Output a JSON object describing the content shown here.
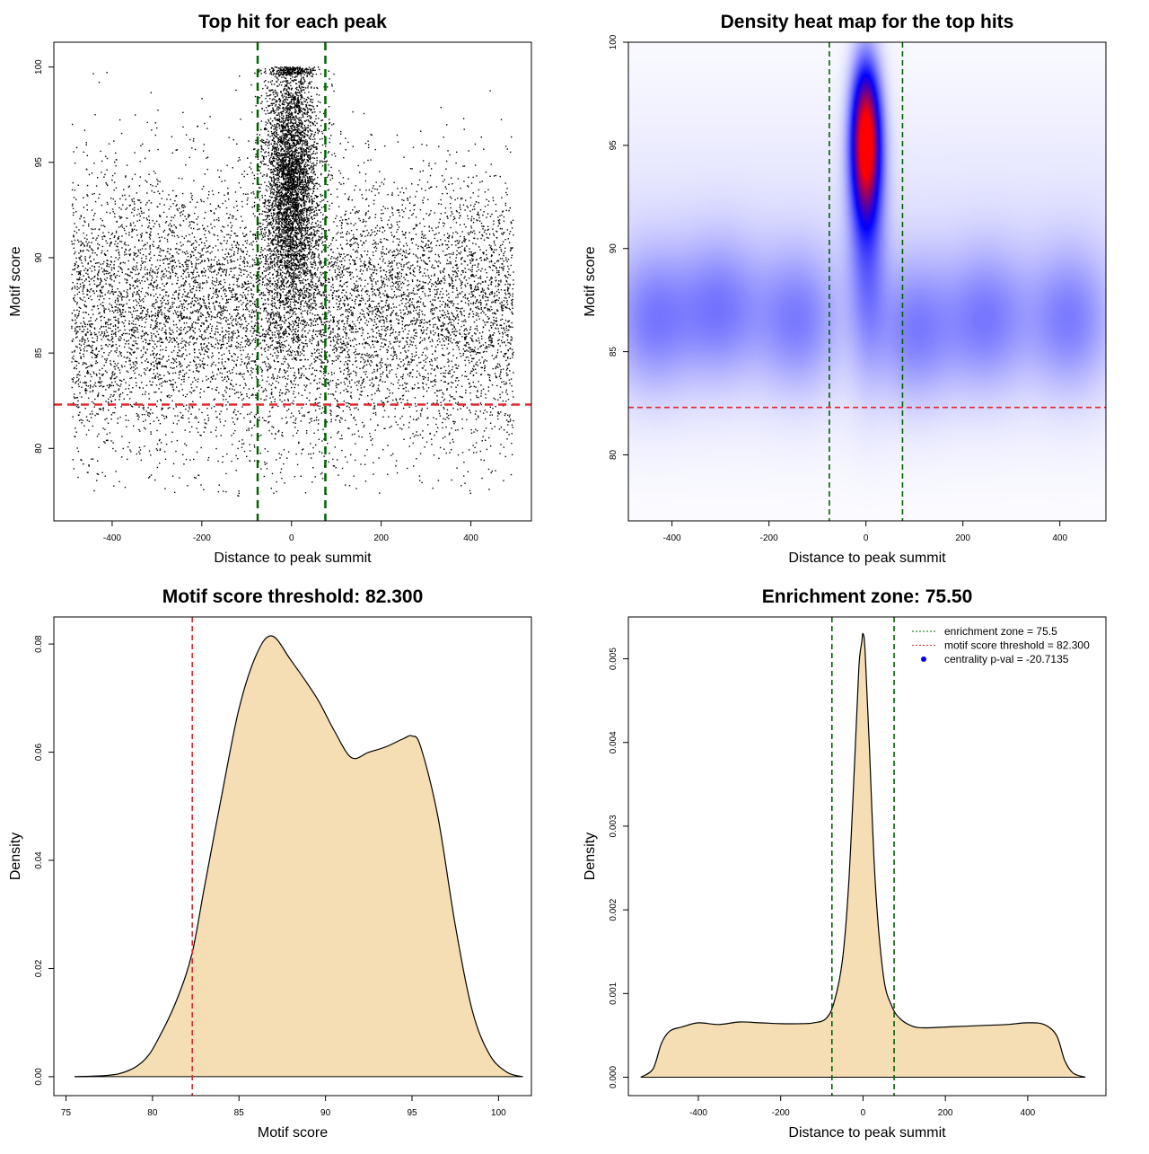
{
  "chart_data": [
    {
      "id": "scatter",
      "type": "scatter",
      "title": "Top hit for each peak",
      "xlabel": "Distance to peak summit",
      "ylabel": "Motif score",
      "xlim": [
        -530,
        535
      ],
      "ylim": [
        76.2,
        101.3
      ],
      "xticks": [
        -400,
        -200,
        0,
        200,
        400
      ],
      "yticks": [
        80,
        85,
        90,
        95,
        100
      ],
      "enrichment_zone": 75.5,
      "motif_score_threshold": 82.3,
      "point_distribution": {
        "n_background": 9000,
        "n_central": 4500,
        "x_range": [
          -490,
          495
        ],
        "score_range": [
          77.5,
          100
        ],
        "central_x_sd": 30,
        "central_score_mean": 94,
        "central_score_sd": 3.5
      },
      "colors": {
        "points": "#000000",
        "zone": "#006400",
        "threshold": "#e0282e"
      }
    },
    {
      "id": "heatmap",
      "type": "heatmap",
      "title": "Density heat map for the top hits",
      "xlabel": "Distance to peak summit",
      "ylabel": "Motif score",
      "xlim": [
        -490,
        495
      ],
      "ylim": [
        76.8,
        100
      ],
      "xticks": [
        -400,
        -200,
        0,
        200,
        400
      ],
      "yticks": [
        80,
        85,
        90,
        95,
        100
      ],
      "enrichment_zone": 75.5,
      "motif_score_threshold": 82.3,
      "peak": {
        "x": 0,
        "y": 95.3
      },
      "colors": {
        "low": "#ffffff",
        "mid": "#0000ff",
        "high": "#ff0000",
        "zone": "#006400",
        "threshold": "#e0282e"
      }
    },
    {
      "id": "score_density",
      "type": "area",
      "title": "Motif score threshold: 82.300",
      "xlabel": "Motif score",
      "ylabel": "Density",
      "xlim": [
        74.3,
        101.9
      ],
      "ylim": [
        -0.0035,
        0.085
      ],
      "xticks": [
        75,
        80,
        85,
        90,
        95,
        100
      ],
      "yticks": [
        0.0,
        0.02,
        0.04,
        0.06,
        0.08
      ],
      "ytick_labels": [
        "0.00",
        "0.02",
        "0.04",
        "0.06",
        "0.08"
      ],
      "x": [
        75.5,
        78,
        79.5,
        80.5,
        81.5,
        82.3,
        83,
        84,
        85,
        86,
        86.9,
        88,
        89.5,
        90.5,
        91.5,
        92.5,
        93.5,
        94.5,
        95,
        95.5,
        96.5,
        97.5,
        98.5,
        99.5,
        100.5,
        101.4
      ],
      "y": [
        0.0,
        0.0005,
        0.003,
        0.008,
        0.015,
        0.023,
        0.035,
        0.052,
        0.068,
        0.078,
        0.0815,
        0.077,
        0.07,
        0.064,
        0.059,
        0.06,
        0.061,
        0.0625,
        0.063,
        0.061,
        0.048,
        0.028,
        0.012,
        0.004,
        0.0008,
        0.0
      ],
      "threshold": 82.3,
      "colors": {
        "fill": "#f5deb3",
        "line": "#000000",
        "threshold": "#e0282e"
      }
    },
    {
      "id": "distance_density",
      "type": "area",
      "title": "Enrichment zone: 75.50",
      "xlabel": "Distance to peak summit",
      "ylabel": "Density",
      "xlim": [
        -570,
        590
      ],
      "ylim": [
        -0.00022,
        0.0055
      ],
      "xticks": [
        -400,
        -200,
        0,
        200,
        400
      ],
      "yticks": [
        0.0,
        0.001,
        0.002,
        0.003,
        0.004,
        0.005
      ],
      "ytick_labels": [
        "0.000",
        "0.001",
        "0.002",
        "0.003",
        "0.004",
        "0.005"
      ],
      "x": [
        -540,
        -510,
        -490,
        -470,
        -440,
        -400,
        -350,
        -300,
        -250,
        -200,
        -150,
        -120,
        -90,
        -70,
        -50,
        -35,
        -20,
        -10,
        -3,
        0,
        5,
        15,
        30,
        50,
        70,
        90,
        120,
        150,
        200,
        250,
        300,
        350,
        400,
        440,
        470,
        490,
        510,
        540
      ],
      "y": [
        0.0,
        0.0001,
        0.0004,
        0.00055,
        0.0006,
        0.00065,
        0.00063,
        0.00066,
        0.00065,
        0.00064,
        0.00064,
        0.00065,
        0.0007,
        0.0009,
        0.0014,
        0.0023,
        0.0038,
        0.0049,
        0.0052,
        0.0053,
        0.0051,
        0.004,
        0.0023,
        0.0012,
        0.00085,
        0.0007,
        0.00061,
        0.00059,
        0.0006,
        0.00061,
        0.00062,
        0.00063,
        0.00065,
        0.00063,
        0.0005,
        0.0002,
        5e-05,
        0.0
      ],
      "enrichment_zone": 75.5,
      "legend": [
        {
          "label": "enrichment zone = 75.5",
          "symbol": "dotted-line",
          "color": "#006400"
        },
        {
          "label": "motif score threshold = 82.300",
          "symbol": "dotted-line",
          "color": "#e0282e"
        },
        {
          "label": "centrality p-val = -20.7135",
          "symbol": "dot",
          "color": "#0000ff"
        }
      ],
      "legend_position": "top-right",
      "colors": {
        "fill": "#f5deb3",
        "line": "#000000",
        "zone": "#006400"
      }
    }
  ]
}
